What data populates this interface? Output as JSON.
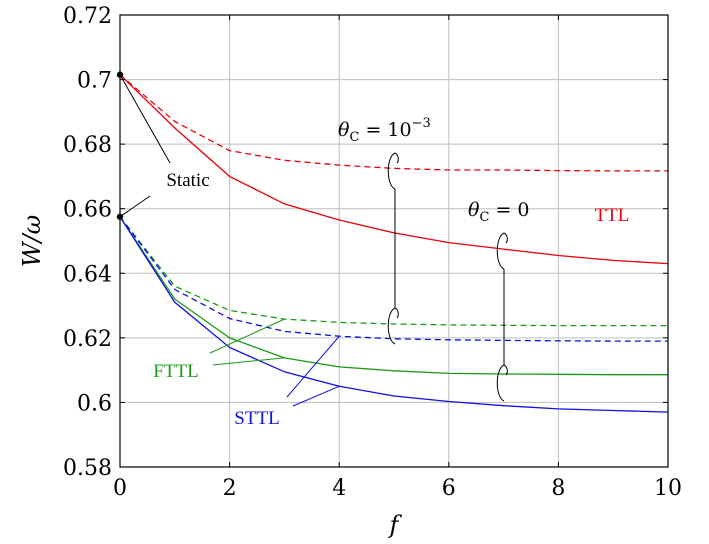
{
  "chart_data": {
    "type": "line",
    "xlabel": "f",
    "ylabel": "W/ω",
    "xlim": [
      0,
      10
    ],
    "ylim": [
      0.58,
      0.72
    ],
    "xticks": [
      "0",
      "2",
      "4",
      "6",
      "8",
      "10"
    ],
    "yticks": [
      "0.58",
      "0.6",
      "0.62",
      "0.64",
      "0.66",
      "0.68",
      "0.7",
      "0.72"
    ],
    "grid": true,
    "static_points": [
      {
        "x": 0,
        "y": 0.7015
      },
      {
        "x": 0,
        "y": 0.6575
      }
    ],
    "static_label": "Static",
    "group_labels": [
      {
        "name": "TTL",
        "color": "#e8000b"
      },
      {
        "name": "FTTL",
        "color": "#1a9a1a"
      },
      {
        "name": "STTL",
        "color": "#1010e0"
      }
    ],
    "theta_labels": [
      {
        "symbol": "θ",
        "subscript": "C",
        "relation": " = 10",
        "exponent": "−3"
      },
      {
        "symbol": "θ",
        "subscript": "C",
        "relation": " = 0",
        "exponent": ""
      }
    ],
    "series": [
      {
        "color": "#e8000b",
        "dash": true,
        "x": [
          0,
          1,
          2,
          3,
          4,
          5,
          6,
          7,
          8,
          9,
          10
        ],
        "values": [
          0.7015,
          0.687,
          0.678,
          0.675,
          0.6735,
          0.6725,
          0.672,
          0.672,
          0.6718,
          0.6717,
          0.6717
        ]
      },
      {
        "color": "#e8000b",
        "dash": false,
        "x": [
          0,
          1,
          2,
          3,
          4,
          5,
          6,
          7,
          8,
          9,
          10
        ],
        "values": [
          0.7015,
          0.685,
          0.67,
          0.6615,
          0.6565,
          0.6525,
          0.6495,
          0.6475,
          0.6455,
          0.644,
          0.643
        ]
      },
      {
        "color": "#1a9a1a",
        "dash": true,
        "x": [
          0,
          1,
          2,
          3,
          4,
          5,
          6,
          7,
          8,
          9,
          10
        ],
        "values": [
          0.6575,
          0.636,
          0.6285,
          0.6258,
          0.6248,
          0.6243,
          0.624,
          0.6239,
          0.6238,
          0.6238,
          0.6238
        ]
      },
      {
        "color": "#1a9a1a",
        "dash": false,
        "x": [
          0,
          1,
          2,
          3,
          4,
          5,
          6,
          7,
          8,
          9,
          10
        ],
        "values": [
          0.6575,
          0.632,
          0.62,
          0.6138,
          0.611,
          0.6098,
          0.609,
          0.6088,
          0.6087,
          0.6086,
          0.6086
        ]
      },
      {
        "color": "#1010e0",
        "dash": true,
        "x": [
          0,
          1,
          2,
          3,
          4,
          5,
          6,
          7,
          8,
          9,
          10
        ],
        "values": [
          0.6575,
          0.635,
          0.626,
          0.622,
          0.6205,
          0.6197,
          0.6194,
          0.6192,
          0.6191,
          0.619,
          0.619
        ]
      },
      {
        "color": "#1010e0",
        "dash": false,
        "x": [
          0,
          1,
          2,
          3,
          4,
          5,
          6,
          7,
          8,
          9,
          10
        ],
        "values": [
          0.6575,
          0.631,
          0.617,
          0.6095,
          0.605,
          0.602,
          0.6003,
          0.599,
          0.598,
          0.5975,
          0.597
        ]
      }
    ]
  }
}
